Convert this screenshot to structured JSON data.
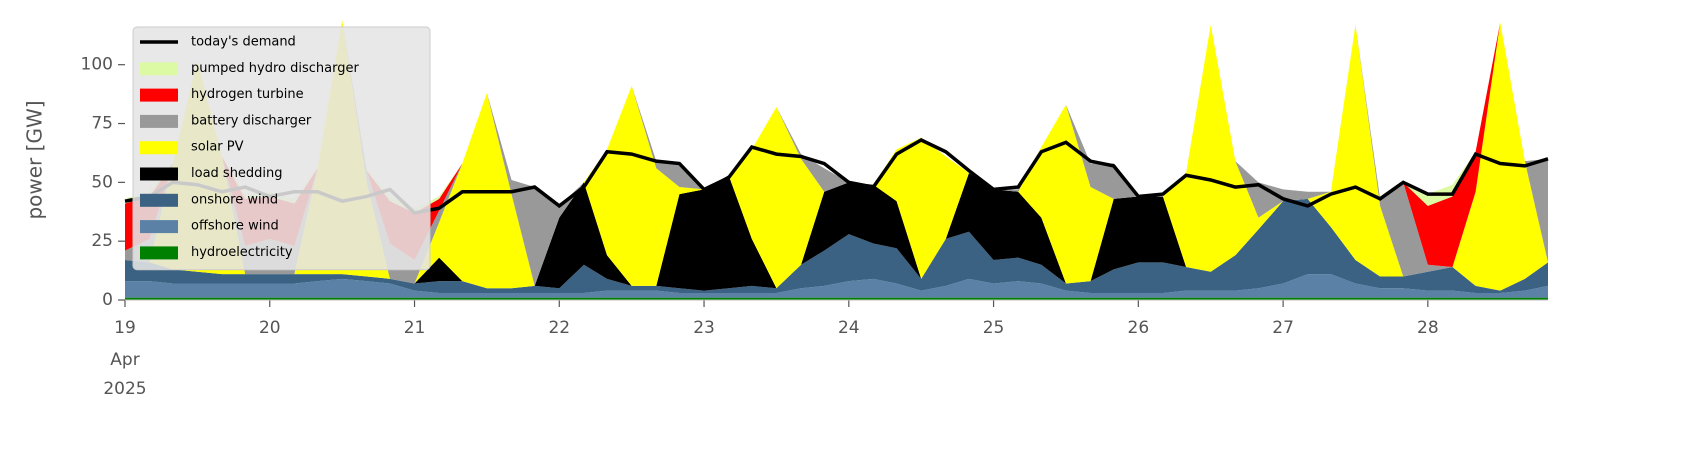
{
  "chart_data": {
    "type": "stacked_area",
    "ylabel": "power [GW]",
    "x": [
      19,
      19.17,
      19.33,
      19.5,
      19.67,
      19.83,
      20,
      20.17,
      20.33,
      20.5,
      20.67,
      20.83,
      21,
      21.17,
      21.33,
      21.5,
      21.67,
      21.83,
      22,
      22.17,
      22.33,
      22.5,
      22.67,
      22.83,
      23,
      23.17,
      23.33,
      23.5,
      23.67,
      23.83,
      24,
      24.17,
      24.33,
      24.5,
      24.67,
      24.83,
      25,
      25.17,
      25.33,
      25.5,
      25.67,
      25.83,
      26,
      26.17,
      26.33,
      26.5,
      26.67,
      26.83,
      27,
      27.17,
      27.33,
      27.5,
      27.67,
      27.83,
      28,
      28.17,
      28.33,
      28.5,
      28.67,
      28.83
    ],
    "xlim": [
      19,
      28.83
    ],
    "xticks": [
      19,
      20,
      21,
      22,
      23,
      24,
      25,
      26,
      27,
      28
    ],
    "x_sublabels": [
      "Apr",
      "2025"
    ],
    "ylim": [
      0,
      119
    ],
    "yticks": [
      0,
      25,
      50,
      75,
      100
    ],
    "legend": "upper left",
    "demand": {
      "name": "today's demand",
      "color": "#000000",
      "values": [
        42,
        44,
        50,
        49,
        46,
        48,
        44,
        46,
        46,
        42,
        44,
        47,
        37,
        39,
        46,
        46,
        46,
        48,
        40,
        48,
        63,
        62,
        59,
        58,
        47,
        52,
        65,
        62,
        61,
        58,
        50,
        48,
        62,
        68,
        63,
        55,
        47,
        48,
        63,
        67,
        59,
        57,
        44,
        45,
        53,
        51,
        48,
        49,
        43,
        40,
        45,
        48,
        43,
        50,
        45,
        45,
        62,
        58,
        57,
        60
      ]
    },
    "series": [
      {
        "name": "hydroelectricity",
        "color": "#008000",
        "values": [
          1,
          1,
          1,
          1,
          1,
          1,
          1,
          1,
          1,
          1,
          1,
          1,
          1,
          1,
          1,
          1,
          1,
          1,
          1,
          1,
          1,
          1,
          1,
          1,
          1,
          1,
          1,
          1,
          1,
          1,
          1,
          1,
          1,
          1,
          1,
          1,
          1,
          1,
          1,
          1,
          1,
          1,
          1,
          1,
          1,
          1,
          1,
          1,
          1,
          1,
          1,
          1,
          1,
          1,
          1,
          1,
          1,
          1,
          1,
          1
        ]
      },
      {
        "name": "offshore wind",
        "color": "#5b82a6",
        "values": [
          7,
          7,
          6,
          6,
          6,
          6,
          6,
          6,
          7,
          8,
          7,
          6,
          3,
          2,
          2,
          2,
          2,
          2,
          2,
          2,
          3,
          3,
          3,
          2,
          2,
          2,
          2,
          2,
          4,
          5,
          7,
          8,
          6,
          3,
          5,
          8,
          6,
          7,
          6,
          3,
          2,
          2,
          2,
          2,
          3,
          3,
          3,
          4,
          6,
          10,
          10,
          6,
          4,
          4,
          3,
          3,
          2,
          2,
          3,
          5
        ]
      },
      {
        "name": "onshore wind",
        "color": "#3b6282",
        "values": [
          9,
          8,
          6,
          5,
          4,
          4,
          4,
          4,
          3,
          2,
          2,
          2,
          3,
          5,
          5,
          2,
          2,
          3,
          2,
          12,
          5,
          2,
          2,
          2,
          1,
          2,
          3,
          2,
          10,
          15,
          20,
          15,
          15,
          5,
          20,
          20,
          10,
          10,
          8,
          3,
          5,
          10,
          13,
          13,
          10,
          8,
          15,
          25,
          35,
          32,
          20,
          10,
          5,
          5,
          8,
          10,
          3,
          1,
          5,
          10
        ]
      },
      {
        "name": "load shedding",
        "color": "#000000",
        "values": [
          0,
          0,
          0,
          0,
          0,
          0,
          0,
          0,
          0,
          0,
          0,
          0,
          0,
          10,
          0,
          0,
          0,
          0,
          30,
          35,
          10,
          0,
          0,
          40,
          43,
          48,
          20,
          0,
          0,
          25,
          22,
          25,
          20,
          0,
          0,
          25,
          30,
          28,
          20,
          0,
          0,
          30,
          28,
          28,
          0,
          0,
          0,
          0,
          0,
          0,
          0,
          0,
          0,
          0,
          0,
          0,
          0,
          0,
          0,
          0
        ]
      },
      {
        "name": "solar PV",
        "color": "#ffff00",
        "values": [
          0,
          0,
          45,
          90,
          50,
          0,
          0,
          0,
          45,
          108,
          40,
          0,
          0,
          15,
          50,
          83,
          40,
          0,
          0,
          0,
          45,
          85,
          50,
          3,
          0,
          0,
          38,
          77,
          45,
          0,
          0,
          0,
          22,
          60,
          35,
          0,
          0,
          0,
          30,
          76,
          40,
          0,
          0,
          0,
          40,
          105,
          40,
          5,
          0,
          0,
          15,
          100,
          30,
          0,
          0,
          0,
          40,
          114,
          50,
          0
        ]
      },
      {
        "name": "battery discharger",
        "color": "#999999",
        "values": [
          4,
          10,
          0,
          0,
          0,
          12,
          15,
          12,
          0,
          0,
          5,
          15,
          10,
          5,
          0,
          0,
          6,
          42,
          5,
          0,
          0,
          0,
          3,
          10,
          0,
          0,
          0,
          0,
          2,
          10,
          0,
          0,
          0,
          0,
          0,
          0,
          0,
          1,
          0,
          0,
          10,
          15,
          0,
          0,
          0,
          0,
          0,
          15,
          5,
          3,
          0,
          0,
          3,
          40,
          3,
          0,
          0,
          0,
          0,
          44
        ]
      },
      {
        "name": "hydrogen turbine",
        "color": "#ff0000",
        "values": [
          20,
          18,
          0,
          0,
          0,
          20,
          18,
          18,
          0,
          0,
          0,
          18,
          20,
          5,
          0,
          0,
          0,
          0,
          0,
          0,
          0,
          0,
          0,
          0,
          0,
          0,
          0,
          0,
          0,
          0,
          0,
          0,
          0,
          0,
          0,
          0,
          0,
          0,
          0,
          0,
          0,
          0,
          0,
          0,
          0,
          0,
          0,
          0,
          0,
          0,
          0,
          0,
          0,
          0,
          25,
          30,
          17,
          0,
          0,
          0
        ]
      },
      {
        "name": "pumped hydro discharger",
        "color": "#dcf9a4",
        "values": [
          2,
          2,
          0,
          0,
          0,
          2,
          2,
          2,
          0,
          0,
          0,
          2,
          2,
          1,
          0,
          0,
          0,
          0,
          0,
          0,
          0,
          0,
          0,
          0,
          0,
          0,
          0,
          0,
          0,
          0,
          0,
          0,
          0,
          0,
          0,
          0,
          0,
          0,
          0,
          0,
          0,
          0,
          0,
          0,
          0,
          0,
          0,
          0,
          0,
          0,
          0,
          0,
          0,
          0,
          5,
          5,
          0,
          0,
          0,
          0
        ]
      }
    ]
  }
}
